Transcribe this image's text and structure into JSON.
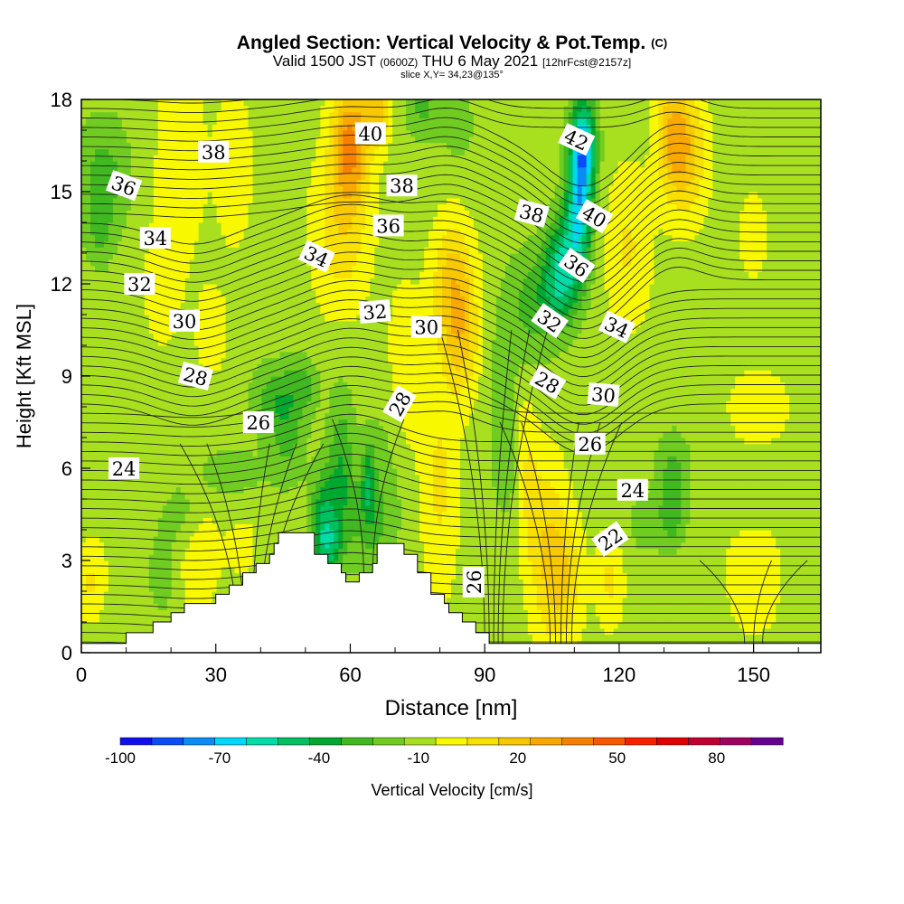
{
  "title": {
    "main": "Angled Section: Vertical Velocity & Pot.Temp.",
    "main_suffix": "(C)",
    "valid_prefix": "Valid 1500 JST",
    "valid_z": "(0600Z)",
    "valid_date": "THU 6 May 2021",
    "fcst": "[12hrFcst@2157z]",
    "slice": "slice X,Y= 34,23@135°"
  },
  "chart_data": {
    "type": "heatmap",
    "xlabel": "Distance [nm]",
    "ylabel": "Height [Kft MSL]",
    "xlim": [
      0,
      165
    ],
    "ylim": [
      0,
      18
    ],
    "x_ticks": [
      0,
      30,
      60,
      90,
      120,
      150
    ],
    "y_ticks": [
      0,
      3,
      6,
      9,
      12,
      15,
      18
    ],
    "terrain": [
      [
        0,
        0.3
      ],
      [
        10,
        0.3
      ],
      [
        10,
        0.65
      ],
      [
        16,
        0.65
      ],
      [
        16,
        1.0
      ],
      [
        20,
        1.0
      ],
      [
        20,
        1.3
      ],
      [
        23,
        1.3
      ],
      [
        23,
        1.6
      ],
      [
        30,
        1.6
      ],
      [
        30,
        1.9
      ],
      [
        33,
        1.9
      ],
      [
        33,
        2.2
      ],
      [
        36,
        2.2
      ],
      [
        36,
        2.6
      ],
      [
        39,
        2.6
      ],
      [
        39,
        2.9
      ],
      [
        42,
        2.9
      ],
      [
        42,
        3.2
      ],
      [
        43,
        3.2
      ],
      [
        43,
        3.55
      ],
      [
        44,
        3.55
      ],
      [
        44,
        3.9
      ],
      [
        52,
        3.9
      ],
      [
        52,
        3.2
      ],
      [
        55,
        3.2
      ],
      [
        55,
        2.9
      ],
      [
        58,
        2.9
      ],
      [
        58,
        2.6
      ],
      [
        59,
        2.6
      ],
      [
        59,
        2.3
      ],
      [
        62,
        2.3
      ],
      [
        62,
        2.6
      ],
      [
        65,
        2.6
      ],
      [
        65,
        2.9
      ],
      [
        66,
        2.9
      ],
      [
        66,
        3.55
      ],
      [
        72,
        3.55
      ],
      [
        72,
        3.2
      ],
      [
        75,
        3.2
      ],
      [
        75,
        2.6
      ],
      [
        78,
        2.6
      ],
      [
        78,
        1.9
      ],
      [
        81,
        1.9
      ],
      [
        81,
        1.6
      ],
      [
        82,
        1.6
      ],
      [
        82,
        1.3
      ],
      [
        85,
        1.3
      ],
      [
        85,
        1.0
      ],
      [
        88,
        1.0
      ],
      [
        88,
        0.65
      ],
      [
        91,
        0.65
      ],
      [
        91,
        0.3
      ],
      [
        165,
        0.3
      ]
    ],
    "contour_levels": [
      22,
      24,
      26,
      28,
      30,
      32,
      34,
      36,
      38,
      40,
      42
    ],
    "contour_labels": [
      {
        "text": "38",
        "x": 29.5,
        "y": 16.3,
        "rot": 0
      },
      {
        "text": "40",
        "x": 64.5,
        "y": 16.9,
        "rot": 0
      },
      {
        "text": "42",
        "x": 110.5,
        "y": 16.7,
        "rot": 25
      },
      {
        "text": "36",
        "x": 9.5,
        "y": 15.2,
        "rot": 20
      },
      {
        "text": "38",
        "x": 71.5,
        "y": 15.2,
        "rot": 0
      },
      {
        "text": "38",
        "x": 100.5,
        "y": 14.3,
        "rot": 15
      },
      {
        "text": "40",
        "x": 114.5,
        "y": 14.2,
        "rot": 30
      },
      {
        "text": "36",
        "x": 68.5,
        "y": 13.9,
        "rot": 0
      },
      {
        "text": "34",
        "x": 16.5,
        "y": 13.5,
        "rot": 0
      },
      {
        "text": "34",
        "x": 52.5,
        "y": 12.9,
        "rot": 25
      },
      {
        "text": "36",
        "x": 110.5,
        "y": 12.6,
        "rot": 35
      },
      {
        "text": "32",
        "x": 13.0,
        "y": 12.0,
        "rot": 0
      },
      {
        "text": "32",
        "x": 65.5,
        "y": 11.1,
        "rot": -5
      },
      {
        "text": "32",
        "x": 104.5,
        "y": 10.8,
        "rot": 35
      },
      {
        "text": "34",
        "x": 119.5,
        "y": 10.6,
        "rot": 25
      },
      {
        "text": "30",
        "x": 23.0,
        "y": 10.8,
        "rot": 0
      },
      {
        "text": "30",
        "x": 77.0,
        "y": 10.6,
        "rot": 0
      },
      {
        "text": "28",
        "x": 25.5,
        "y": 9.0,
        "rot": 15
      },
      {
        "text": "28",
        "x": 71.0,
        "y": 8.1,
        "rot": -60
      },
      {
        "text": "28",
        "x": 104.0,
        "y": 8.8,
        "rot": 30
      },
      {
        "text": "30",
        "x": 116.5,
        "y": 8.4,
        "rot": 5
      },
      {
        "text": "26",
        "x": 39.5,
        "y": 7.5,
        "rot": 0
      },
      {
        "text": "26",
        "x": 113.5,
        "y": 6.8,
        "rot": 0
      },
      {
        "text": "24",
        "x": 9.5,
        "y": 6.0,
        "rot": 0
      },
      {
        "text": "24",
        "x": 123.0,
        "y": 5.3,
        "rot": 0
      },
      {
        "text": "22",
        "x": 118.0,
        "y": 3.7,
        "rot": -35
      },
      {
        "text": "26",
        "x": 87.5,
        "y": 2.3,
        "rot": -90
      }
    ],
    "colorbar": {
      "label": "Vertical Velocity [cm/s]",
      "range": [
        -100,
        90
      ],
      "step": 10,
      "tick_labels": [
        "-100",
        "-70",
        "-40",
        "-10",
        "20",
        "50",
        "80"
      ],
      "tick_values": [
        -100,
        -70,
        -40,
        -10,
        20,
        50,
        80
      ],
      "colors": [
        "#1010ee",
        "#0a4cf5",
        "#0a8cf5",
        "#00d8f8",
        "#00dca6",
        "#00c060",
        "#00a830",
        "#40b820",
        "#70cc20",
        "#a8e020",
        "#f8f800",
        "#f8e000",
        "#f8c800",
        "#f8a800",
        "#f88000",
        "#f85800",
        "#f82000",
        "#e00000",
        "#c00030",
        "#a00060",
        "#680090"
      ]
    }
  }
}
